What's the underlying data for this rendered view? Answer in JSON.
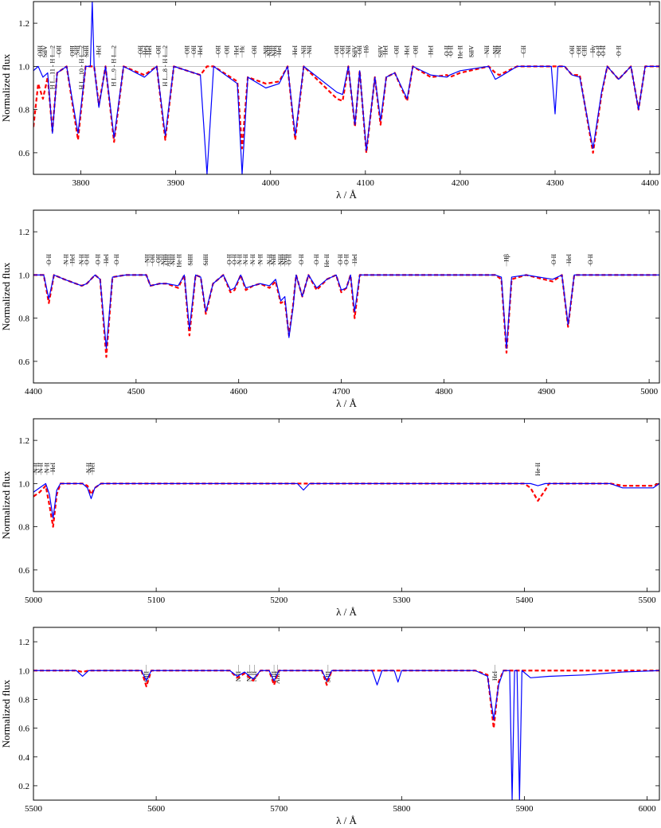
{
  "chart_data": [
    {
      "type": "line",
      "xlabel": "λ / Å",
      "ylabel": "Normalized flux",
      "xlim": [
        3750,
        4410
      ],
      "xticks": [
        3800,
        3900,
        4000,
        4100,
        4200,
        4300,
        4400
      ],
      "ylim": [
        0.5,
        1.3
      ],
      "yticks": [
        0.6,
        0.8,
        {
          "value": 1,
          "label": "1.0"
        },
        1.2
      ],
      "hline": 1,
      "x": [
        3750,
        3755,
        3760,
        3765,
        3770,
        3775,
        3785,
        3797,
        3805,
        3810,
        3812,
        3814,
        3819,
        3826,
        3835,
        3845,
        3867,
        3880,
        3889,
        3898,
        3926,
        3933,
        3940,
        3965,
        3970,
        3976,
        3995,
        4009,
        4018,
        4026,
        4035,
        4070,
        4076,
        4082,
        4089,
        4094,
        4101,
        4110,
        4116,
        4122,
        4131,
        4144,
        4150,
        4169,
        4186,
        4189,
        4200,
        4230,
        4237,
        4241,
        4260,
        4296,
        4300,
        4303,
        4310,
        4318,
        4326,
        4340,
        4349,
        4355,
        4367,
        4380,
        4388,
        4395,
        4410
      ],
      "series": [
        {
          "color": "#ff0000",
          "style": "dashed",
          "values": [
            0.72,
            0.92,
            0.85,
            0.95,
            0.7,
            0.97,
            1.0,
            0.66,
            1.0,
            1.0,
            1.0,
            1.0,
            0.82,
            1.0,
            0.65,
            1.0,
            0.96,
            1.0,
            0.66,
            1.0,
            0.96,
            1.0,
            1.0,
            0.93,
            0.62,
            0.95,
            0.92,
            0.93,
            1.0,
            0.66,
            1.0,
            0.85,
            0.84,
            1.0,
            0.72,
            0.98,
            0.6,
            0.95,
            0.73,
            0.95,
            0.97,
            0.84,
            1.0,
            0.95,
            0.96,
            0.95,
            0.97,
            1.0,
            0.97,
            0.96,
            1.0,
            1.0,
            1.0,
            1.0,
            1.0,
            0.96,
            0.96,
            0.6,
            0.87,
            1.0,
            0.94,
            1.0,
            0.8,
            1.0,
            1.0
          ]
        },
        {
          "color": "#0000ff",
          "style": "solid",
          "values": [
            0.98,
            1.0,
            0.95,
            0.97,
            0.69,
            0.97,
            1.0,
            0.69,
            1.0,
            1.0,
            1.3,
            1.0,
            0.81,
            1.0,
            0.67,
            1.0,
            0.95,
            1.0,
            0.68,
            1.0,
            0.96,
            0.5,
            1.0,
            0.92,
            0.5,
            0.95,
            0.9,
            0.92,
            1.0,
            0.68,
            1.0,
            0.88,
            0.87,
            1.0,
            0.73,
            0.98,
            0.61,
            0.95,
            0.75,
            0.95,
            0.97,
            0.85,
            1.0,
            0.96,
            0.95,
            0.96,
            0.98,
            1.0,
            0.94,
            0.95,
            1.0,
            1.0,
            0.78,
            1.0,
            1.0,
            0.96,
            0.95,
            0.62,
            0.88,
            1.0,
            0.94,
            1.0,
            0.8,
            1.0,
            1.0
          ]
        }
      ],
      "line_labels": [
        {
          "text": "OIII",
          "x": 3757
        },
        {
          "text": "SiIV",
          "x": 3762
        },
        {
          "text": "H I....11 - H I....2",
          "x": 3770
        },
        {
          "text": "OII",
          "x": 3777
        },
        {
          "text": "OIII",
          "x": 3791
        },
        {
          "text": "SiII",
          "x": 3796
        },
        {
          "text": "H I....10 - H I....2",
          "x": 3801
        },
        {
          "text": "SiIII",
          "x": 3806
        },
        {
          "text": "HeI",
          "x": 3819
        },
        {
          "text": "H I....9 - H I....2",
          "x": 3835
        },
        {
          "text": "OII",
          "x": 3863
        },
        {
          "text": "HeI",
          "x": 3868
        },
        {
          "text": "HeI",
          "x": 3872
        },
        {
          "text": "OII",
          "x": 3882
        },
        {
          "text": "H I....8 - H I....2",
          "x": 3889
        },
        {
          "text": "OII",
          "x": 3912
        },
        {
          "text": "OII",
          "x": 3919
        },
        {
          "text": "HeI",
          "x": 3926
        },
        {
          "text": "OII",
          "x": 3945
        },
        {
          "text": "OII",
          "x": 3954
        },
        {
          "text": "HeI",
          "x": 3964
        },
        {
          "text": "Hε",
          "x": 3970
        },
        {
          "text": "OII",
          "x": 3983
        },
        {
          "text": "NII",
          "x": 3995
        },
        {
          "text": "NIII",
          "x": 3999
        },
        {
          "text": "NIII",
          "x": 4004
        },
        {
          "text": "HeI",
          "x": 4009
        },
        {
          "text": "HeI",
          "x": 4026
        },
        {
          "text": "NII",
          "x": 4035
        },
        {
          "text": "NII",
          "x": 4041
        },
        {
          "text": "OII",
          "x": 4070
        },
        {
          "text": "OII",
          "x": 4076
        },
        {
          "text": "NII",
          "x": 4082
        },
        {
          "text": "SiIV",
          "x": 4089
        },
        {
          "text": "OII",
          "x": 4094
        },
        {
          "text": "Hδ",
          "x": 4101
        },
        {
          "text": "SiIV",
          "x": 4116
        },
        {
          "text": "HeI",
          "x": 4121
        },
        {
          "text": "OII",
          "x": 4133
        },
        {
          "text": "HeI",
          "x": 4144
        },
        {
          "text": "OII",
          "x": 4153
        },
        {
          "text": "HeI",
          "x": 4169
        },
        {
          "text": "O II",
          "x": 4186
        },
        {
          "text": "O II",
          "x": 4190
        },
        {
          "text": "He II",
          "x": 4200
        },
        {
          "text": "SiIV",
          "x": 4212
        },
        {
          "text": "NII",
          "x": 4228
        },
        {
          "text": "NII",
          "x": 4237
        },
        {
          "text": "NII",
          "x": 4241
        },
        {
          "text": "CII",
          "x": 4267
        },
        {
          "text": "OII",
          "x": 4318
        },
        {
          "text": "OII",
          "x": 4325
        },
        {
          "text": "CIII",
          "x": 4331
        },
        {
          "text": "Hγ",
          "x": 4340
        },
        {
          "text": "O II",
          "x": 4346
        },
        {
          "text": "O II",
          "x": 4351
        },
        {
          "text": "O II",
          "x": 4367
        }
      ]
    },
    {
      "type": "line",
      "xlabel": "λ / Å",
      "ylabel": "Normalized flux",
      "xlim": [
        4400,
        5010
      ],
      "xticks": [
        4400,
        4500,
        4600,
        4700,
        4800,
        4900,
        5000
      ],
      "ylim": [
        0.5,
        1.3
      ],
      "yticks": [
        0.6,
        0.8,
        {
          "value": 1,
          "label": "1.0"
        },
        1.2
      ],
      "x": [
        4400,
        4410,
        4415,
        4420,
        4430,
        4447,
        4452,
        4460,
        4465,
        4471,
        4477,
        4490,
        4510,
        4514,
        4523,
        4530,
        4541,
        4547,
        4552,
        4558,
        4563,
        4568,
        4575,
        4585,
        4592,
        4596,
        4602,
        4607,
        4614,
        4621,
        4630,
        4636,
        4641,
        4645,
        4649,
        4653,
        4656,
        4662,
        4668,
        4676,
        4686,
        4695,
        4700,
        4705,
        4709,
        4713,
        4718,
        4730,
        4800,
        4850,
        4856,
        4861,
        4866,
        4880,
        4906,
        4915,
        4921,
        4927,
        4940,
        5010
      ],
      "series": [
        {
          "color": "#ff0000",
          "style": "dashed",
          "values": [
            1.0,
            1.0,
            0.87,
            1.0,
            0.98,
            0.95,
            0.96,
            1.0,
            0.98,
            0.62,
            0.99,
            1.0,
            1.0,
            0.95,
            0.96,
            0.96,
            0.94,
            1.0,
            0.72,
            1.0,
            0.99,
            0.82,
            0.96,
            1.0,
            0.92,
            0.93,
            1.0,
            0.93,
            0.95,
            0.96,
            0.94,
            0.97,
            0.87,
            0.88,
            0.72,
            0.86,
            1.0,
            0.9,
            1.0,
            0.93,
            0.98,
            1.0,
            0.92,
            0.94,
            1.0,
            0.8,
            1.0,
            1.0,
            1.0,
            1.0,
            0.98,
            0.64,
            0.98,
            1.0,
            0.97,
            1.0,
            0.76,
            1.0,
            1.0,
            1.0
          ]
        },
        {
          "color": "#0000ff",
          "style": "solid",
          "values": [
            1.0,
            1.0,
            0.89,
            1.0,
            0.98,
            0.95,
            0.96,
            1.0,
            0.98,
            0.66,
            0.99,
            1.0,
            1.0,
            0.95,
            0.96,
            0.96,
            0.95,
            1.0,
            0.75,
            1.0,
            0.99,
            0.83,
            0.96,
            1.0,
            0.93,
            0.94,
            1.0,
            0.94,
            0.95,
            0.96,
            0.95,
            0.98,
            0.88,
            0.9,
            0.71,
            0.85,
            1.0,
            0.9,
            1.0,
            0.94,
            0.98,
            1.0,
            0.93,
            0.94,
            1.0,
            0.83,
            1.0,
            1.0,
            1.0,
            1.0,
            0.99,
            0.66,
            0.99,
            1.0,
            0.98,
            1.0,
            0.77,
            1.0,
            1.0,
            1.0
          ]
        }
      ],
      "line_labels": [
        {
          "text": "O II",
          "x": 4415
        },
        {
          "text": "N II",
          "x": 4432
        },
        {
          "text": "HeI",
          "x": 4438
        },
        {
          "text": "N II",
          "x": 4447
        },
        {
          "text": "O II",
          "x": 4452
        },
        {
          "text": "O II",
          "x": 4463
        },
        {
          "text": "HeI",
          "x": 4471
        },
        {
          "text": "O II",
          "x": 4481
        },
        {
          "text": "NII",
          "x": 4511
        },
        {
          "text": "OII",
          "x": 4516
        },
        {
          "text": "OII",
          "x": 4522
        },
        {
          "text": "NIII",
          "x": 4527
        },
        {
          "text": "AlIII",
          "x": 4531
        },
        {
          "text": "NIII",
          "x": 4536
        },
        {
          "text": "He II",
          "x": 4542
        },
        {
          "text": "SiIII",
          "x": 4553
        },
        {
          "text": "SiIII",
          "x": 4568
        },
        {
          "text": "O II",
          "x": 4591
        },
        {
          "text": "O II",
          "x": 4596
        },
        {
          "text": "N II",
          "x": 4601
        },
        {
          "text": "N II",
          "x": 4607
        },
        {
          "text": "N II",
          "x": 4614
        },
        {
          "text": "N II",
          "x": 4621
        },
        {
          "text": "N II",
          "x": 4630
        },
        {
          "text": "NIII",
          "x": 4634
        },
        {
          "text": "NIII",
          "x": 4641
        },
        {
          "text": "NIII",
          "x": 4645
        },
        {
          "text": "O II",
          "x": 4649
        },
        {
          "text": "O II",
          "x": 4661
        },
        {
          "text": "O II",
          "x": 4676
        },
        {
          "text": "He II",
          "x": 4686
        },
        {
          "text": "O II",
          "x": 4699
        },
        {
          "text": "O II",
          "x": 4705
        },
        {
          "text": "HeI",
          "x": 4713
        },
        {
          "text": "Hβ",
          "x": 4861
        },
        {
          "text": "O II",
          "x": 4907
        },
        {
          "text": "HeI",
          "x": 4922
        },
        {
          "text": "O II",
          "x": 4943
        }
      ]
    },
    {
      "type": "line",
      "xlabel": "λ / Å",
      "ylabel": "Normalized flux",
      "xlim": [
        5000,
        5510
      ],
      "xticks": [
        5000,
        5100,
        5200,
        5300,
        5400,
        5500
      ],
      "ylim": [
        0.5,
        1.3
      ],
      "yticks": [
        0.6,
        0.8,
        {
          "value": 1,
          "label": "1.0"
        },
        1.2
      ],
      "x": [
        5000,
        5005,
        5010,
        5013,
        5016,
        5019,
        5022,
        5040,
        5044,
        5047,
        5050,
        5055,
        5160,
        5215,
        5220,
        5225,
        5250,
        5400,
        5405,
        5411,
        5417,
        5420,
        5470,
        5480,
        5490,
        5500,
        5505,
        5510
      ],
      "series": [
        {
          "color": "#ff0000",
          "style": "dashed",
          "values": [
            0.94,
            0.96,
            0.99,
            0.9,
            0.8,
            0.95,
            1.0,
            1.0,
            0.99,
            0.95,
            0.98,
            1.0,
            1.0,
            1.0,
            1.0,
            1.0,
            1.0,
            1.0,
            0.98,
            0.92,
            0.97,
            1.0,
            1.0,
            0.99,
            0.99,
            0.99,
            0.99,
            1.0
          ]
        },
        {
          "color": "#0000ff",
          "style": "solid",
          "values": [
            0.96,
            0.98,
            1.0,
            0.95,
            0.84,
            0.97,
            1.0,
            1.0,
            0.98,
            0.93,
            0.98,
            1.0,
            1.0,
            1.0,
            0.97,
            1.0,
            1.0,
            1.0,
            1.0,
            0.99,
            1.0,
            1.0,
            1.0,
            0.98,
            0.98,
            0.98,
            0.98,
            1.0
          ]
        }
      ],
      "line_labels": [
        {
          "text": "N II",
          "x": 5002
        },
        {
          "text": "N II",
          "x": 5006
        },
        {
          "text": "N II",
          "x": 5011
        },
        {
          "text": "HeI",
          "x": 5016
        },
        {
          "text": "N II",
          "x": 5045
        },
        {
          "text": "HeI",
          "x": 5048
        },
        {
          "text": "He II",
          "x": 5411
        }
      ]
    },
    {
      "type": "line",
      "xlabel": "λ / Å",
      "ylabel": "Normalized flux",
      "xlim": [
        5500,
        6010
      ],
      "xticks": [
        5500,
        5600,
        5700,
        5800,
        5900,
        6000
      ],
      "ylim": [
        0.1,
        1.3
      ],
      "yticks": [
        0.2,
        0.4,
        0.6,
        0.8,
        {
          "value": 1,
          "label": "1.0"
        },
        1.2
      ],
      "x": [
        5500,
        5535,
        5540,
        5545,
        5560,
        5588,
        5592,
        5596,
        5660,
        5666,
        5672,
        5679,
        5685,
        5692,
        5696,
        5700,
        5735,
        5739,
        5743,
        5776,
        5780,
        5784,
        5794,
        5797,
        5800,
        5860,
        5870,
        5875,
        5879,
        5883,
        5888,
        5890,
        5892,
        5894,
        5896,
        5898,
        5905,
        5920,
        5950,
        5980,
        6010
      ],
      "series": [
        {
          "color": "#ff0000",
          "style": "dashed",
          "values": [
            1.0,
            1.0,
            0.99,
            1.0,
            1.0,
            1.0,
            0.89,
            1.0,
            1.0,
            0.95,
            0.98,
            0.93,
            1.0,
            1.0,
            0.9,
            1.0,
            1.0,
            0.9,
            1.0,
            1.0,
            1.0,
            1.0,
            1.0,
            1.0,
            1.0,
            1.0,
            0.97,
            0.6,
            0.92,
            1.0,
            1.0,
            1.0,
            1.0,
            1.0,
            1.0,
            1.0,
            1.0,
            1.0,
            1.0,
            1.0,
            1.0
          ]
        },
        {
          "color": "#0000ff",
          "style": "solid",
          "values": [
            1.0,
            1.0,
            0.96,
            1.0,
            1.0,
            1.0,
            0.93,
            1.0,
            1.0,
            0.96,
            0.99,
            0.94,
            1.0,
            1.0,
            0.93,
            1.0,
            1.0,
            0.93,
            1.0,
            1.0,
            0.9,
            1.0,
            1.0,
            0.92,
            1.0,
            1.0,
            0.96,
            0.66,
            0.9,
            1.0,
            1.0,
            0.1,
            1.0,
            1.0,
            0.1,
            1.0,
            0.95,
            0.96,
            0.97,
            0.99,
            1.0
          ]
        }
      ],
      "line_labels": [
        {
          "text": "OIII",
          "x": 5592
        },
        {
          "text": "N II",
          "x": 5667
        },
        {
          "text": "N II",
          "x": 5676
        },
        {
          "text": "N II",
          "x": 5680
        },
        {
          "text": "CIII",
          "x": 5696
        },
        {
          "text": "AlIII",
          "x": 5699
        },
        {
          "text": "SiIII",
          "x": 5740
        },
        {
          "text": "HeI",
          "x": 5876
        }
      ]
    }
  ]
}
